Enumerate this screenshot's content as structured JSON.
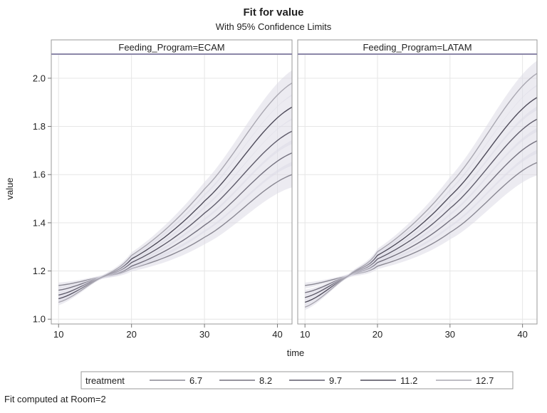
{
  "chart_data": {
    "type": "line",
    "title": "Fit for value",
    "subtitle": "With 95% Confidence Limits",
    "xlabel": "time",
    "ylabel": "value",
    "xlim": [
      9,
      42
    ],
    "ylim": [
      0.98,
      2.1
    ],
    "xticks": [
      10,
      20,
      30,
      40
    ],
    "yticks": [
      1.0,
      1.2,
      1.4,
      1.6,
      1.8,
      2.0
    ],
    "grid": true,
    "confidence_band": true,
    "legend": {
      "title": "treatment",
      "placement": "bottom",
      "entries": [
        "6.7",
        "8.2",
        "9.7",
        "11.2",
        "12.7"
      ],
      "colors": [
        "#8a8893",
        "#74717f",
        "#5f5c6b",
        "#4e4b5a",
        "#a9a7b1"
      ]
    },
    "panels": [
      {
        "label": "Feeding_Program=ECAM",
        "series": [
          {
            "name": "6.7",
            "x": [
              10,
              15,
              20,
              30,
              42
            ],
            "y": [
              1.14,
              1.17,
              1.21,
              1.34,
              1.6
            ]
          },
          {
            "name": "8.2",
            "x": [
              10,
              15,
              20,
              30,
              42
            ],
            "y": [
              1.12,
              1.166,
              1.22,
              1.39,
              1.69
            ]
          },
          {
            "name": "9.7",
            "x": [
              10,
              15,
              20,
              30,
              42
            ],
            "y": [
              1.1,
              1.163,
              1.235,
              1.44,
              1.78
            ]
          },
          {
            "name": "11.2",
            "x": [
              10,
              15,
              20,
              30,
              42
            ],
            "y": [
              1.085,
              1.16,
              1.25,
              1.49,
              1.88
            ]
          },
          {
            "name": "12.7",
            "x": [
              10,
              15,
              20,
              30,
              42
            ],
            "y": [
              1.07,
              1.158,
              1.265,
              1.54,
              1.98
            ]
          }
        ]
      },
      {
        "label": "Feeding_Program=LATAM",
        "series": [
          {
            "name": "6.7",
            "x": [
              10,
              16,
              20,
              30,
              42
            ],
            "y": [
              1.14,
              1.18,
              1.22,
              1.36,
              1.65
            ]
          },
          {
            "name": "8.2",
            "x": [
              10,
              16,
              20,
              30,
              42
            ],
            "y": [
              1.11,
              1.18,
              1.235,
              1.41,
              1.74
            ]
          },
          {
            "name": "9.7",
            "x": [
              10,
              16,
              20,
              30,
              42
            ],
            "y": [
              1.09,
              1.18,
              1.25,
              1.46,
              1.83
            ]
          },
          {
            "name": "11.2",
            "x": [
              10,
              16,
              20,
              30,
              42
            ],
            "y": [
              1.07,
              1.18,
              1.265,
              1.51,
              1.92
            ]
          },
          {
            "name": "12.7",
            "x": [
              10,
              16,
              20,
              30,
              42
            ],
            "y": [
              1.05,
              1.18,
              1.28,
              1.56,
              2.02
            ]
          }
        ]
      }
    ],
    "footnote": "Fit computed at Room=2"
  }
}
